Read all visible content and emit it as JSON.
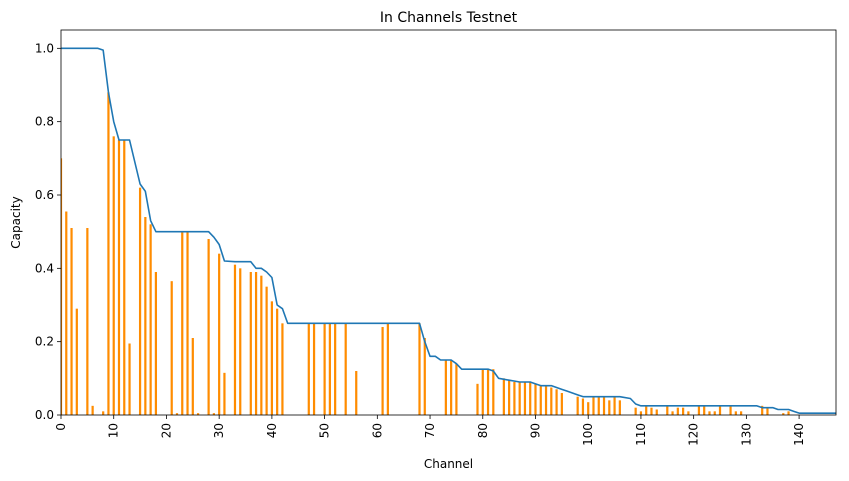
{
  "chart_data": {
    "type": "bar",
    "title": "In Channels Testnet",
    "xlabel": "Channel",
    "ylabel": "Capacity",
    "xlim": [
      0,
      147
    ],
    "ylim": [
      0,
      1.05
    ],
    "x_ticks": [
      0,
      10,
      20,
      30,
      40,
      50,
      60,
      70,
      80,
      90,
      100,
      110,
      120,
      130,
      140
    ],
    "y_ticks": [
      0.0,
      0.2,
      0.4,
      0.6,
      0.8,
      1.0
    ],
    "x_tick_labels": [
      "0",
      "10",
      "20",
      "30",
      "40",
      "50",
      "60",
      "70",
      "80",
      "90",
      "100",
      "110",
      "120",
      "130",
      "140"
    ],
    "y_tick_labels": [
      "0.0",
      "0.2",
      "0.4",
      "0.6",
      "0.8",
      "1.0"
    ],
    "grid": false,
    "colors": {
      "bars": "#ff8c00",
      "line": "#1f77b4",
      "axes": "#000000"
    },
    "series": [
      {
        "type": "bar",
        "values": [
          0.7,
          0.555,
          0.51,
          0.29,
          0.0,
          0.51,
          0.025,
          0.0,
          0.01,
          0.88,
          0.76,
          0.75,
          0.75,
          0.195,
          0.0,
          0.62,
          0.54,
          0.52,
          0.39,
          0.0,
          0.0,
          0.365,
          0.005,
          0.5,
          0.5,
          0.21,
          0.005,
          0.0,
          0.48,
          0.005,
          0.44,
          0.115,
          0.0,
          0.41,
          0.4,
          0.0,
          0.39,
          0.39,
          0.38,
          0.35,
          0.31,
          0.29,
          0.25,
          0.0,
          0.0,
          0.0,
          0.0,
          0.25,
          0.25,
          0.0,
          0.25,
          0.25,
          0.25,
          0.0,
          0.25,
          0.0,
          0.12,
          0.0,
          0.0,
          0.0,
          0.0,
          0.24,
          0.25,
          0.0,
          0.0,
          0.0,
          0.0,
          0.0,
          0.25,
          0.21,
          0.0,
          0.0,
          0.0,
          0.15,
          0.15,
          0.14,
          0.0,
          0.0,
          0.0,
          0.085,
          0.125,
          0.125,
          0.125,
          0.0,
          0.1,
          0.095,
          0.09,
          0.09,
          0.09,
          0.09,
          0.085,
          0.08,
          0.08,
          0.075,
          0.07,
          0.06,
          0.0,
          0.0,
          0.05,
          0.045,
          0.035,
          0.05,
          0.05,
          0.05,
          0.04,
          0.05,
          0.04,
          0.0,
          0.0,
          0.02,
          0.01,
          0.025,
          0.02,
          0.015,
          0.0,
          0.025,
          0.01,
          0.02,
          0.02,
          0.01,
          0.0,
          0.025,
          0.025,
          0.01,
          0.01,
          0.025,
          0.0,
          0.025,
          0.01,
          0.01,
          0.0,
          0.0,
          0.0,
          0.025,
          0.02,
          0.0,
          0.0,
          0.005,
          0.01,
          0.0,
          0.0,
          0.0,
          0.0,
          0.0,
          0.0,
          0.0,
          0.0,
          0.0
        ]
      },
      {
        "type": "line",
        "x": [
          0,
          7,
          8,
          9,
          10,
          11,
          12,
          13,
          15,
          16,
          17,
          18,
          20,
          22,
          25,
          26,
          27,
          28,
          29,
          30,
          31,
          33,
          34,
          36,
          37,
          38,
          39,
          40,
          41,
          42,
          43,
          50,
          60,
          68,
          69,
          70,
          71,
          72,
          73,
          74,
          75,
          76,
          78,
          80,
          81,
          82,
          83,
          85,
          87,
          89,
          90,
          91,
          92,
          93,
          94,
          95,
          96,
          97,
          98,
          99,
          100,
          102,
          104,
          106,
          108,
          109,
          110,
          114,
          118,
          120,
          126,
          128,
          132,
          133,
          135,
          136,
          137,
          138,
          139,
          140,
          147
        ],
        "y": [
          1.0,
          1.0,
          0.995,
          0.88,
          0.8,
          0.75,
          0.75,
          0.75,
          0.63,
          0.61,
          0.53,
          0.5,
          0.5,
          0.5,
          0.5,
          0.5,
          0.5,
          0.5,
          0.485,
          0.465,
          0.42,
          0.418,
          0.418,
          0.418,
          0.4,
          0.4,
          0.39,
          0.375,
          0.3,
          0.29,
          0.25,
          0.25,
          0.25,
          0.25,
          0.2,
          0.16,
          0.16,
          0.15,
          0.15,
          0.15,
          0.14,
          0.125,
          0.125,
          0.125,
          0.125,
          0.12,
          0.1,
          0.095,
          0.09,
          0.09,
          0.085,
          0.08,
          0.08,
          0.08,
          0.075,
          0.07,
          0.065,
          0.06,
          0.055,
          0.05,
          0.05,
          0.05,
          0.05,
          0.05,
          0.045,
          0.03,
          0.025,
          0.025,
          0.025,
          0.025,
          0.025,
          0.025,
          0.025,
          0.02,
          0.02,
          0.015,
          0.015,
          0.015,
          0.01,
          0.005,
          0.005
        ]
      }
    ]
  }
}
